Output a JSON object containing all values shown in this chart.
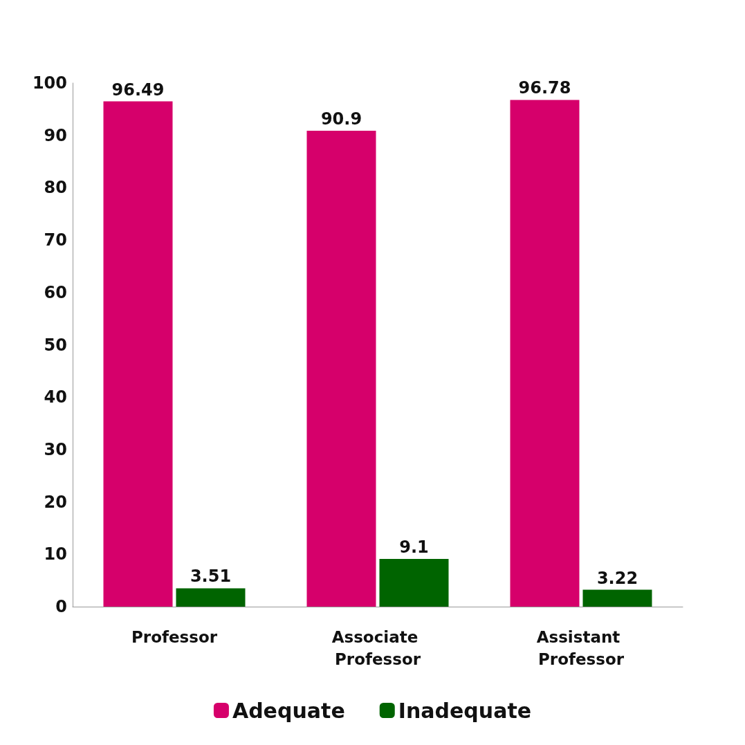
{
  "chart_data": {
    "type": "bar",
    "categories": [
      "Professor",
      "Associate Professor",
      "Assistant Professor"
    ],
    "series": [
      {
        "name": "Adequate",
        "color": "#d6006b",
        "values": [
          96.49,
          90.9,
          96.78
        ]
      },
      {
        "name": "Inadequate",
        "color": "#006400",
        "values": [
          3.51,
          9.1,
          3.22
        ]
      }
    ],
    "ylim": [
      0,
      100
    ],
    "yticks": [
      0,
      10,
      20,
      30,
      40,
      50,
      60,
      70,
      80,
      90,
      100
    ],
    "grid": false,
    "legend": "bottom",
    "data_labels": true
  }
}
